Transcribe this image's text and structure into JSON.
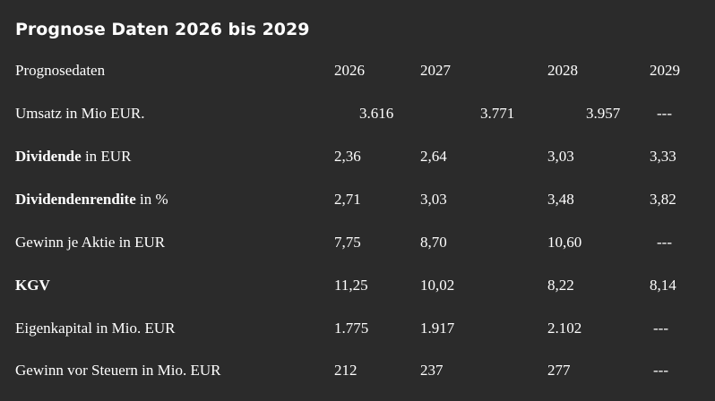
{
  "title": "Prognose Daten 2026 bis 2029",
  "table": {
    "header": {
      "label": "Prognosedaten",
      "years": [
        "2026",
        "2027",
        "2028",
        "2029"
      ]
    },
    "rows": [
      {
        "label_bold": "",
        "label_rest": "Umsatz in Mio EUR.",
        "values": [
          "3.616",
          "3.771",
          "3.957",
          "---"
        ]
      },
      {
        "label_bold": "Dividende",
        "label_rest": " in EUR",
        "values": [
          "2,36",
          "2,64",
          "3,03",
          "3,33"
        ]
      },
      {
        "label_bold": "Dividendenrendite",
        "label_rest": " in %",
        "values": [
          "2,71",
          "3,03",
          "3,48",
          "3,82"
        ]
      },
      {
        "label_bold": "",
        "label_rest": "Gewinn je Aktie in EUR",
        "values": [
          "7,75",
          "8,70",
          "10,60",
          "---"
        ]
      },
      {
        "label_bold": "KGV",
        "label_rest": "",
        "values": [
          "11,25",
          "10,02",
          "8,22",
          "8,14"
        ]
      },
      {
        "label_bold": "",
        "label_rest": "Eigenkapital in Mio. EUR",
        "values": [
          "1.775",
          "1.917",
          "2.102",
          "---"
        ]
      },
      {
        "label_bold": "",
        "label_rest": "Gewinn vor Steuern in Mio. EUR",
        "values": [
          "212",
          "237",
          "277",
          "---"
        ]
      }
    ]
  }
}
